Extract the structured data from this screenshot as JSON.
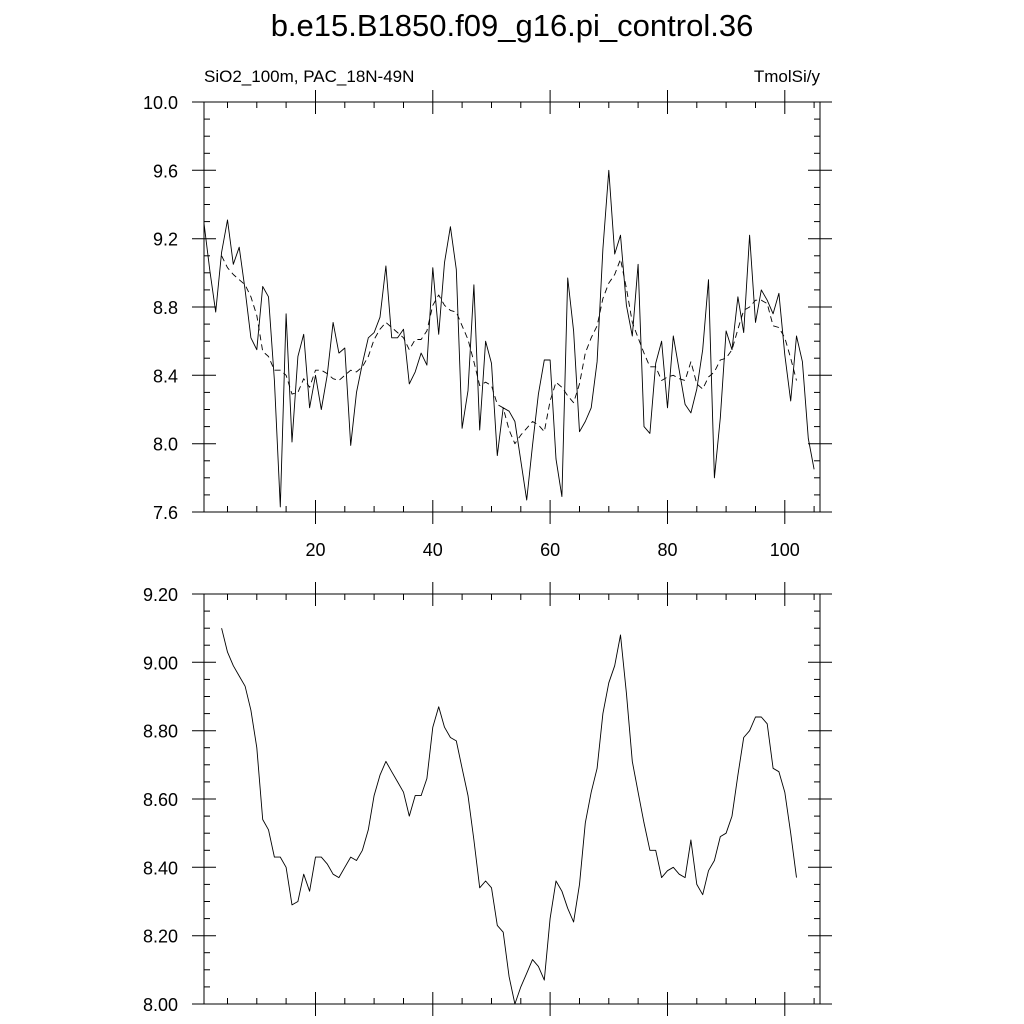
{
  "title": "b.e15.B1850.f09_g16.pi_control.36",
  "chart_data": [
    {
      "type": "line",
      "left_label": "SiO2_100m, PAC_18N-49N",
      "right_label": "TmolSi/y",
      "xlim": [
        1,
        106
      ],
      "ylim": [
        7.6,
        10.0
      ],
      "x_ticks": [
        20,
        40,
        60,
        80,
        100
      ],
      "x_tick_labels": [
        "20",
        "40",
        "60",
        "80",
        "100"
      ],
      "y_ticks": [
        7.6,
        8.0,
        8.4,
        8.8,
        9.2,
        9.6,
        10.0
      ],
      "y_tick_labels": [
        "7.6",
        "8.0",
        "8.4",
        "8.8",
        "9.2",
        "9.6",
        "10.0"
      ],
      "x_minor_step": 5,
      "y_minor_step": 0.1,
      "series": [
        {
          "style": "solid",
          "x_start": 1,
          "values": [
            9.29,
            9.01,
            8.77,
            9.12,
            9.31,
            9.05,
            9.15,
            8.9,
            8.62,
            8.55,
            8.92,
            8.86,
            8.37,
            7.63,
            8.76,
            8.01,
            8.51,
            8.64,
            8.21,
            8.4,
            8.2,
            8.4,
            8.71,
            8.53,
            8.56,
            7.99,
            8.3,
            8.47,
            8.62,
            8.65,
            8.74,
            9.04,
            8.62,
            8.62,
            8.67,
            8.35,
            8.42,
            8.53,
            8.46,
            9.03,
            8.64,
            9.06,
            9.27,
            9.02,
            8.09,
            8.31,
            8.93,
            8.08,
            8.6,
            8.47,
            7.93,
            8.21,
            8.19,
            8.13,
            7.9,
            7.67,
            7.99,
            8.29,
            8.49,
            8.49,
            7.91,
            7.69,
            8.97,
            8.66,
            8.07,
            8.13,
            8.21,
            8.48,
            9.14,
            9.6,
            9.11,
            9.22,
            8.81,
            8.63,
            9.05,
            8.1,
            8.06,
            8.47,
            8.6,
            8.21,
            8.63,
            8.43,
            8.23,
            8.18,
            8.32,
            8.55,
            8.96,
            7.8,
            8.15,
            8.66,
            8.55,
            8.86,
            8.65,
            9.22,
            8.71,
            8.9,
            8.84,
            8.76,
            8.88,
            8.52,
            8.25,
            8.63,
            8.48,
            8.03,
            7.85
          ]
        },
        {
          "style": "dashed",
          "x_start": 4,
          "values": [
            9.1,
            9.03,
            8.99,
            8.96,
            8.93,
            8.86,
            8.75,
            8.54,
            8.51,
            8.43,
            8.43,
            8.4,
            8.29,
            8.3,
            8.38,
            8.33,
            8.43,
            8.43,
            8.41,
            8.38,
            8.37,
            8.4,
            8.43,
            8.42,
            8.45,
            8.51,
            8.61,
            8.67,
            8.71,
            8.68,
            8.65,
            8.62,
            8.55,
            8.61,
            8.61,
            8.66,
            8.81,
            8.87,
            8.81,
            8.78,
            8.77,
            8.69,
            8.61,
            8.48,
            8.34,
            8.36,
            8.34,
            8.23,
            8.21,
            8.08,
            8.0,
            8.05,
            8.09,
            8.13,
            8.11,
            8.07,
            8.25,
            8.36,
            8.33,
            8.28,
            8.24,
            8.35,
            8.53,
            8.62,
            8.69,
            8.85,
            8.94,
            8.99,
            9.08,
            8.91,
            8.71,
            8.62,
            8.53,
            8.45,
            8.45,
            8.37,
            8.39,
            8.4,
            8.38,
            8.37,
            8.48,
            8.35,
            8.32,
            8.39,
            8.42,
            8.49,
            8.5,
            8.55,
            8.67,
            8.78,
            8.8,
            8.84,
            8.84,
            8.82,
            8.69,
            8.68,
            8.62,
            8.5,
            8.37
          ]
        }
      ]
    },
    {
      "type": "line",
      "xlim": [
        1,
        106
      ],
      "ylim": [
        8.0,
        9.2
      ],
      "x_ticks": [
        20,
        40,
        60,
        80,
        100
      ],
      "y_ticks": [
        8.0,
        8.2,
        8.4,
        8.6,
        8.8,
        9.0,
        9.2
      ],
      "y_tick_labels": [
        "8.00",
        "8.20",
        "8.40",
        "8.60",
        "8.80",
        "9.00",
        "9.20"
      ],
      "x_minor_step": 5,
      "y_minor_step": 0.05,
      "series": [
        {
          "style": "solid",
          "x_start": 4,
          "values": [
            9.1,
            9.03,
            8.99,
            8.96,
            8.93,
            8.86,
            8.75,
            8.54,
            8.51,
            8.43,
            8.43,
            8.4,
            8.29,
            8.3,
            8.38,
            8.33,
            8.43,
            8.43,
            8.41,
            8.38,
            8.37,
            8.4,
            8.43,
            8.42,
            8.45,
            8.51,
            8.61,
            8.67,
            8.71,
            8.68,
            8.65,
            8.62,
            8.55,
            8.61,
            8.61,
            8.66,
            8.81,
            8.87,
            8.81,
            8.78,
            8.77,
            8.69,
            8.61,
            8.48,
            8.34,
            8.36,
            8.34,
            8.23,
            8.21,
            8.08,
            8.0,
            8.05,
            8.09,
            8.13,
            8.11,
            8.07,
            8.25,
            8.36,
            8.33,
            8.28,
            8.24,
            8.35,
            8.53,
            8.62,
            8.69,
            8.85,
            8.94,
            8.99,
            9.08,
            8.91,
            8.71,
            8.62,
            8.53,
            8.45,
            8.45,
            8.37,
            8.39,
            8.4,
            8.38,
            8.37,
            8.48,
            8.35,
            8.32,
            8.39,
            8.42,
            8.49,
            8.5,
            8.55,
            8.67,
            8.78,
            8.8,
            8.84,
            8.84,
            8.82,
            8.69,
            8.68,
            8.62,
            8.5,
            8.37
          ]
        }
      ]
    }
  ]
}
